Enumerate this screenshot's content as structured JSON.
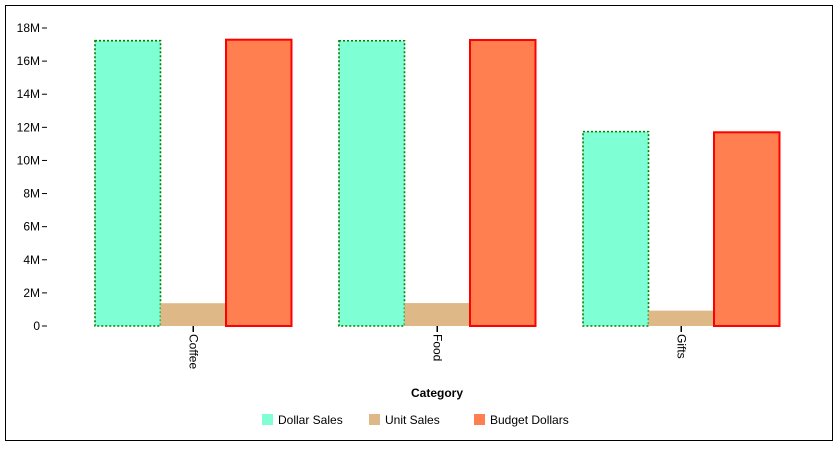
{
  "chart_data": {
    "type": "bar",
    "categories": [
      "Coffee",
      "Food",
      "Gifts"
    ],
    "series": [
      {
        "name": "Dollar Sales",
        "values": [
          17231525,
          17229656,
          11741283
        ],
        "color": "#7fffd4",
        "border": "#008000",
        "border_style": "dotted"
      },
      {
        "name": "Unit Sales",
        "values": [
          1376266,
          1384845,
          927880
        ],
        "color": "#deb887",
        "border": "#deb887",
        "border_style": "none"
      },
      {
        "name": "Budget Dollars",
        "values": [
          17293560,
          17274780,
          11700440
        ],
        "color": "#ff7f50",
        "border": "#ff0000",
        "border_style": "solid"
      }
    ],
    "xlabel": "Category",
    "ylabel": "",
    "ylim": [
      0,
      18000000
    ],
    "yticks": [
      0,
      2000000,
      4000000,
      6000000,
      8000000,
      10000000,
      12000000,
      14000000,
      16000000,
      18000000
    ],
    "ytick_labels": [
      "0",
      "2M",
      "4M",
      "6M",
      "8M",
      "10M",
      "12M",
      "14M",
      "16M",
      "18M"
    ],
    "grid": false,
    "legend_position": "bottom"
  }
}
